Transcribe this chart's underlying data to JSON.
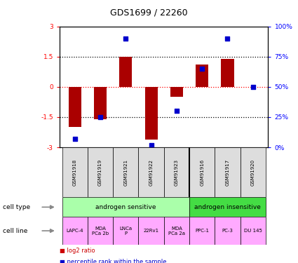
{
  "title": "GDS1699 / 22260",
  "samples": [
    "GSM91918",
    "GSM91919",
    "GSM91921",
    "GSM91922",
    "GSM91923",
    "GSM91916",
    "GSM91917",
    "GSM91920"
  ],
  "log2_ratios": [
    -2.0,
    -1.6,
    1.5,
    -2.6,
    -0.5,
    1.1,
    1.4,
    0.0
  ],
  "percentile_ranks": [
    7,
    25,
    90,
    2,
    30,
    65,
    90,
    50
  ],
  "ylim_left": [
    -3,
    3
  ],
  "ylim_right": [
    0,
    100
  ],
  "yticks_left": [
    -3,
    -1.5,
    0,
    1.5,
    3
  ],
  "ytick_labels_left": [
    "-3",
    "-1.5",
    "0",
    "1.5",
    "3"
  ],
  "yticks_right": [
    0,
    25,
    50,
    75,
    100
  ],
  "ytick_labels_right": [
    "0%",
    "25%",
    "50%",
    "75%",
    "100%"
  ],
  "bar_color": "#aa0000",
  "dot_color": "#0000cc",
  "cell_type_groups": [
    {
      "label": "androgen sensitive",
      "start": 0,
      "end": 4,
      "color": "#aaffaa"
    },
    {
      "label": "androgen insensitive",
      "start": 5,
      "end": 7,
      "color": "#44dd44"
    }
  ],
  "cell_lines": [
    {
      "label": "LAPC-4",
      "col": 0
    },
    {
      "label": "MDA\nPCa 2b",
      "col": 1
    },
    {
      "label": "LNCa\nP",
      "col": 2
    },
    {
      "label": "22Rv1",
      "col": 3
    },
    {
      "label": "MDA\nPCa 2a",
      "col": 4
    },
    {
      "label": "PPC-1",
      "col": 5
    },
    {
      "label": "PC-3",
      "col": 6
    },
    {
      "label": "DU 145",
      "col": 7
    }
  ],
  "cell_line_color": "#ffaaff",
  "sample_box_color": "#dddddd",
  "legend_items": [
    {
      "color": "#cc0000",
      "label": "log2 ratio"
    },
    {
      "color": "#0000cc",
      "label": "percentile rank within the sample"
    }
  ],
  "background_color": "#ffffff"
}
